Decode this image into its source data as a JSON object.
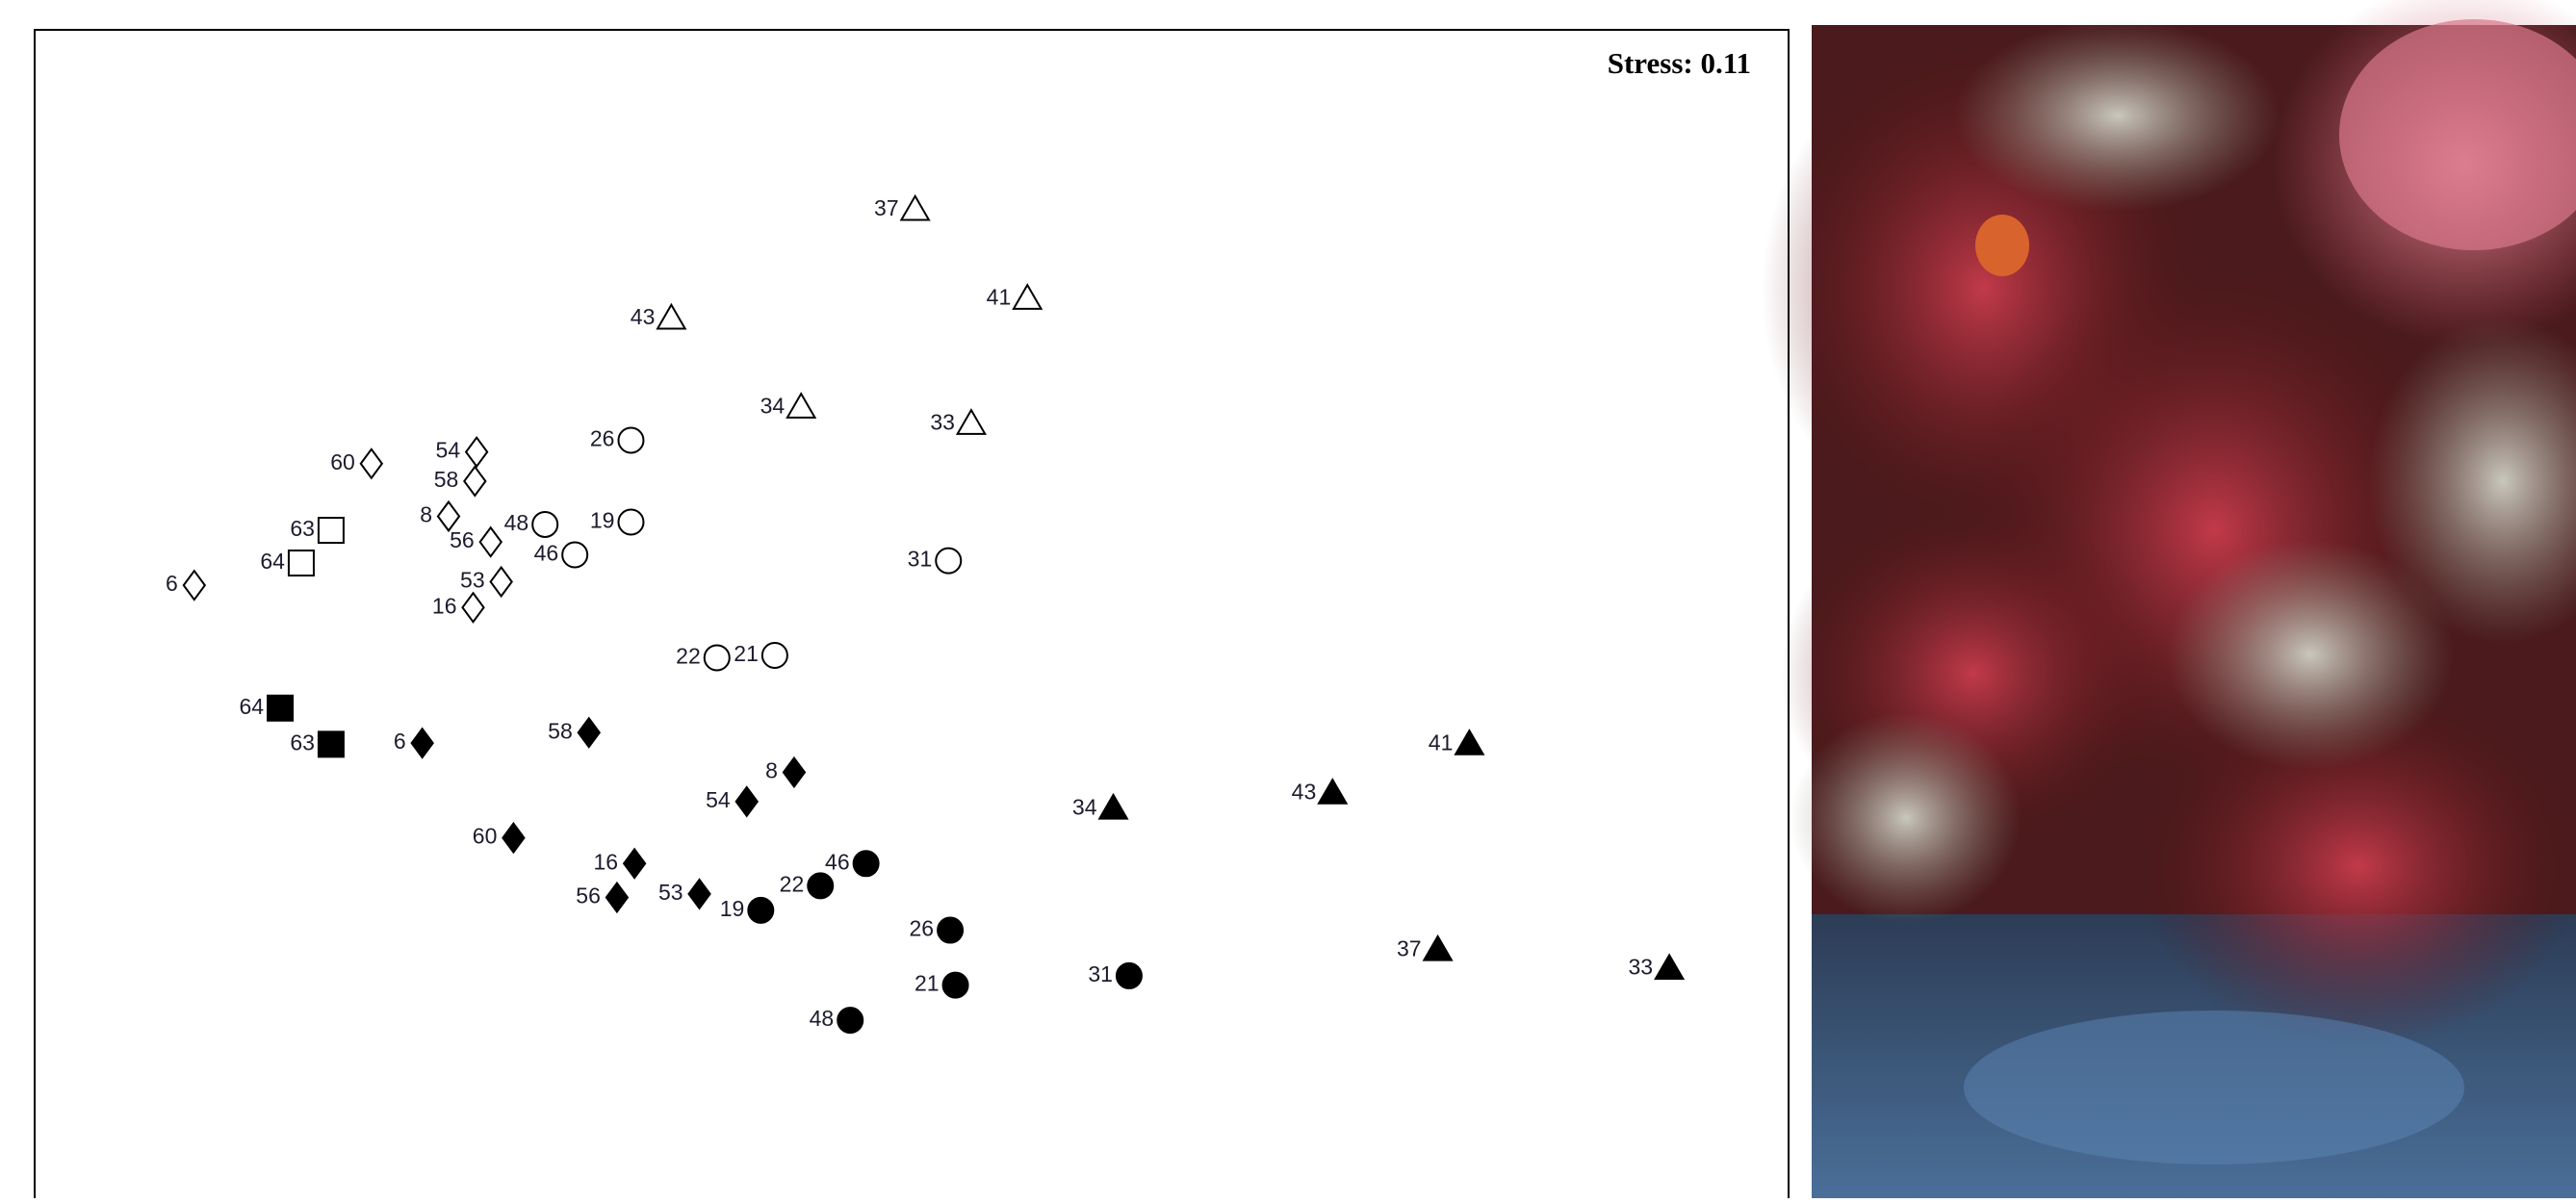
{
  "chart_data": {
    "type": "scatter",
    "annotation": "Stress: 0.11",
    "xlim": [
      0,
      100
    ],
    "ylim": [
      0,
      100
    ],
    "series": [
      {
        "marker": "triangle",
        "filled": false,
        "color": "#000000",
        "labels": [
          "37",
          "41",
          "43",
          "34",
          "33"
        ],
        "x": [
          50.2,
          56.6,
          36.3,
          43.7,
          53.4
        ],
        "y": [
          84.6,
          77.0,
          75.3,
          67.7,
          66.3
        ]
      },
      {
        "marker": "circle",
        "filled": false,
        "color": "#000000",
        "labels": [
          "26",
          "19",
          "48",
          "46",
          "31",
          "22",
          "21"
        ],
        "x": [
          34.0,
          34.0,
          29.1,
          30.8,
          52.1,
          38.9,
          42.2
        ],
        "y": [
          64.9,
          57.9,
          57.7,
          55.1,
          54.6,
          46.3,
          46.5
        ]
      },
      {
        "marker": "diamond",
        "filled": false,
        "color": "#000000",
        "labels": [
          "60",
          "54",
          "58",
          "8",
          "56",
          "53",
          "16",
          "6"
        ],
        "x": [
          19.2,
          25.2,
          25.1,
          23.6,
          26.0,
          26.6,
          25.0,
          9.1
        ],
        "y": [
          62.9,
          63.9,
          61.4,
          58.4,
          56.2,
          52.8,
          50.6,
          52.5
        ]
      },
      {
        "marker": "square",
        "filled": false,
        "color": "#000000",
        "labels": [
          "63",
          "64"
        ],
        "x": [
          16.9,
          15.2
        ],
        "y": [
          57.2,
          54.4
        ]
      },
      {
        "marker": "square",
        "filled": true,
        "color": "#000000",
        "labels": [
          "64",
          "63"
        ],
        "x": [
          14.0,
          16.9
        ],
        "y": [
          42.0,
          38.9
        ]
      },
      {
        "marker": "diamond",
        "filled": true,
        "color": "#000000",
        "labels": [
          "6",
          "58",
          "54",
          "8",
          "60",
          "16",
          "56",
          "53"
        ],
        "x": [
          22.1,
          31.6,
          40.6,
          43.3,
          27.3,
          34.2,
          33.2,
          37.9
        ],
        "y": [
          39.0,
          39.9,
          34.0,
          36.5,
          30.9,
          28.7,
          25.8,
          26.1
        ]
      },
      {
        "marker": "circle",
        "filled": true,
        "color": "#000000",
        "labels": [
          "19",
          "22",
          "46",
          "26",
          "21",
          "31",
          "48"
        ],
        "x": [
          41.4,
          44.8,
          47.4,
          52.2,
          52.5,
          62.4,
          46.5
        ],
        "y": [
          24.7,
          26.8,
          28.7,
          23.0,
          18.3,
          19.1,
          15.3
        ]
      },
      {
        "marker": "triangle",
        "filled": true,
        "color": "#000000",
        "labels": [
          "41",
          "34",
          "43",
          "37",
          "33"
        ],
        "x": [
          81.8,
          61.5,
          74.0,
          80.0,
          93.2
        ],
        "y": [
          38.9,
          33.4,
          34.7,
          21.3,
          19.7
        ]
      }
    ]
  }
}
